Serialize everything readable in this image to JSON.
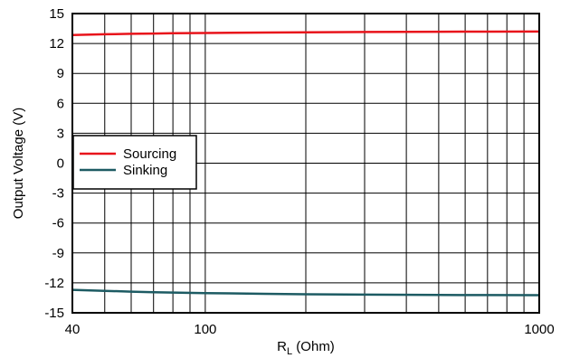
{
  "chart_data": {
    "type": "line",
    "x_scale": "log",
    "xlim": [
      40,
      1000
    ],
    "ylim": [
      -15,
      15
    ],
    "x_ticks": [
      40,
      100,
      1000
    ],
    "x_tick_labels": [
      "40",
      "100",
      "1000"
    ],
    "x_gridlines": [
      40,
      50,
      60,
      70,
      80,
      90,
      100,
      200,
      300,
      400,
      500,
      600,
      700,
      800,
      900,
      1000
    ],
    "y_ticks": [
      15,
      12,
      9,
      6,
      3,
      0,
      -3,
      -6,
      -9,
      -12,
      -15
    ],
    "y_tick_labels": [
      "15",
      "12",
      "9",
      "6",
      "3",
      "0",
      "-3",
      "-6",
      "-9",
      "-12",
      "-15"
    ],
    "xlabel_main": "R",
    "xlabel_sub": "L",
    "xlabel_rest": " (Ohm)",
    "ylabel": "Output Voltage (V)",
    "grid": true,
    "legend_position": "left",
    "series": [
      {
        "name": "Sourcing",
        "color": "#e8141b",
        "x": [
          40,
          50,
          60,
          70,
          80,
          100,
          150,
          200,
          300,
          500,
          700,
          1000
        ],
        "y": [
          12.85,
          12.92,
          12.97,
          13.0,
          13.02,
          13.05,
          13.1,
          13.12,
          13.15,
          13.18,
          13.19,
          13.2
        ]
      },
      {
        "name": "Sinking",
        "color": "#1d5b63",
        "x": [
          40,
          50,
          60,
          70,
          80,
          100,
          150,
          200,
          300,
          500,
          700,
          1000
        ],
        "y": [
          -12.7,
          -12.8,
          -12.88,
          -12.93,
          -12.97,
          -13.02,
          -13.1,
          -13.14,
          -13.18,
          -13.21,
          -13.22,
          -13.23
        ]
      }
    ]
  }
}
